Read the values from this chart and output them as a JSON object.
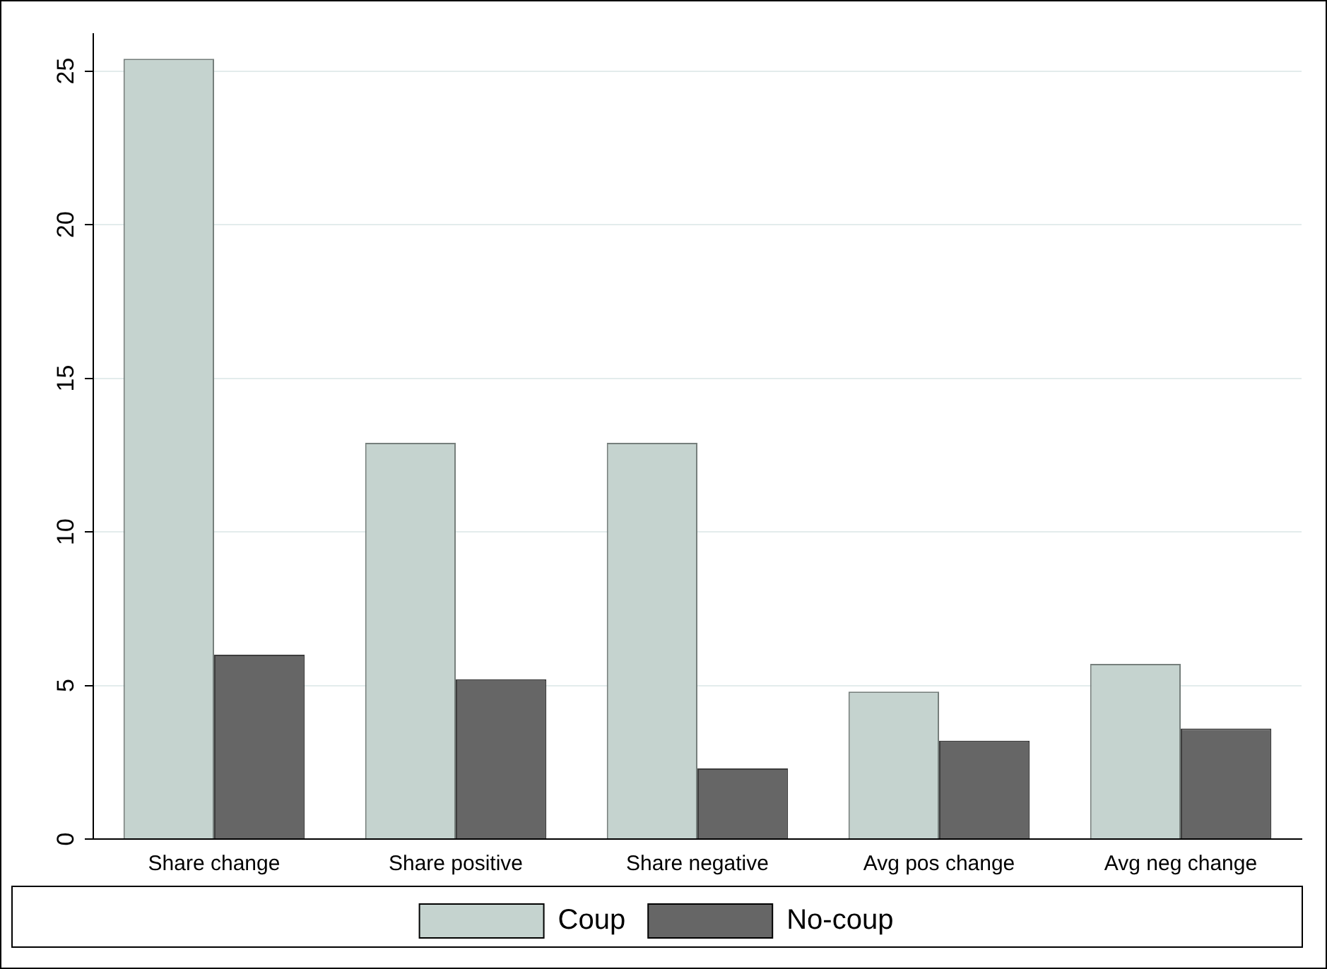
{
  "chart_data": {
    "type": "bar",
    "categories": [
      "Share change",
      "Share positive",
      "Share negative",
      "Avg pos change",
      "Avg neg change"
    ],
    "series": [
      {
        "name": "Coup",
        "color": "#c5d3cf",
        "values": [
          25.4,
          12.9,
          12.9,
          4.8,
          5.7
        ]
      },
      {
        "name": "No-coup",
        "color": "#666666",
        "values": [
          6.0,
          5.2,
          2.3,
          3.2,
          3.6
        ]
      }
    ],
    "ylim": [
      0,
      26.2
    ],
    "yticks": [
      0,
      5,
      10,
      15,
      20,
      25
    ],
    "grid": "y",
    "legend": "bottom"
  }
}
